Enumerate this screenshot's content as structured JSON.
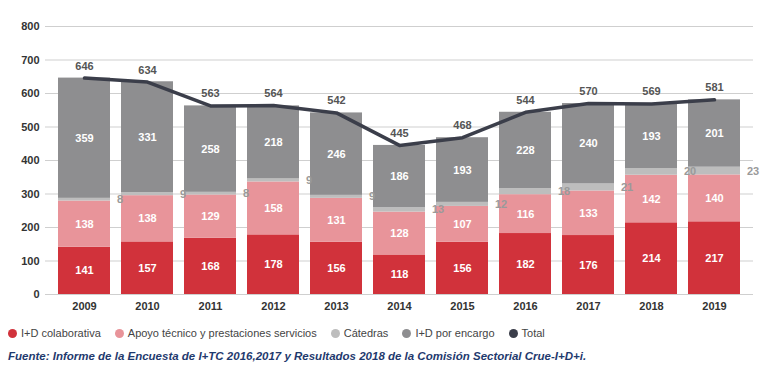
{
  "chart_data": {
    "type": "bar",
    "stacked": true,
    "data_labels": true,
    "grid": true,
    "legend": "bottom",
    "caption": "Fuente: Informe de la Encuesta de I+TC 2016,2017 y Resultados 2018 de la Comisión Sectorial Crue-I+D+i.",
    "categories": [
      "2009",
      "2010",
      "2011",
      "2012",
      "2013",
      "2014",
      "2015",
      "2016",
      "2017",
      "2018",
      "2019"
    ],
    "ylim": [
      0,
      800
    ],
    "yticks": [
      0,
      100,
      200,
      300,
      400,
      500,
      600,
      700,
      800
    ],
    "series": [
      {
        "name": "I+D colaborativa",
        "color": "#d1323b",
        "values": [
          141,
          157,
          168,
          178,
          156,
          118,
          156,
          182,
          176,
          214,
          217
        ]
      },
      {
        "name": "Apoyo técnico y prestaciones servicios",
        "color": "#e8949a",
        "values": [
          138,
          138,
          129,
          158,
          131,
          128,
          107,
          116,
          133,
          142,
          140
        ]
      },
      {
        "name": "Cátedras",
        "color": "#bdbdbd",
        "values": [
          8,
          9,
          8,
          9,
          9,
          13,
          12,
          18,
          21,
          20,
          23
        ]
      },
      {
        "name": "I+D por encargo",
        "color": "#8e8e90",
        "values": [
          359,
          331,
          258,
          218,
          246,
          186,
          193,
          228,
          240,
          193,
          201
        ]
      },
      {
        "name": "Total",
        "color": "#3b3e4a",
        "type": "line",
        "values": [
          646,
          634,
          563,
          564,
          542,
          445,
          468,
          544,
          570,
          569,
          581
        ]
      }
    ]
  }
}
